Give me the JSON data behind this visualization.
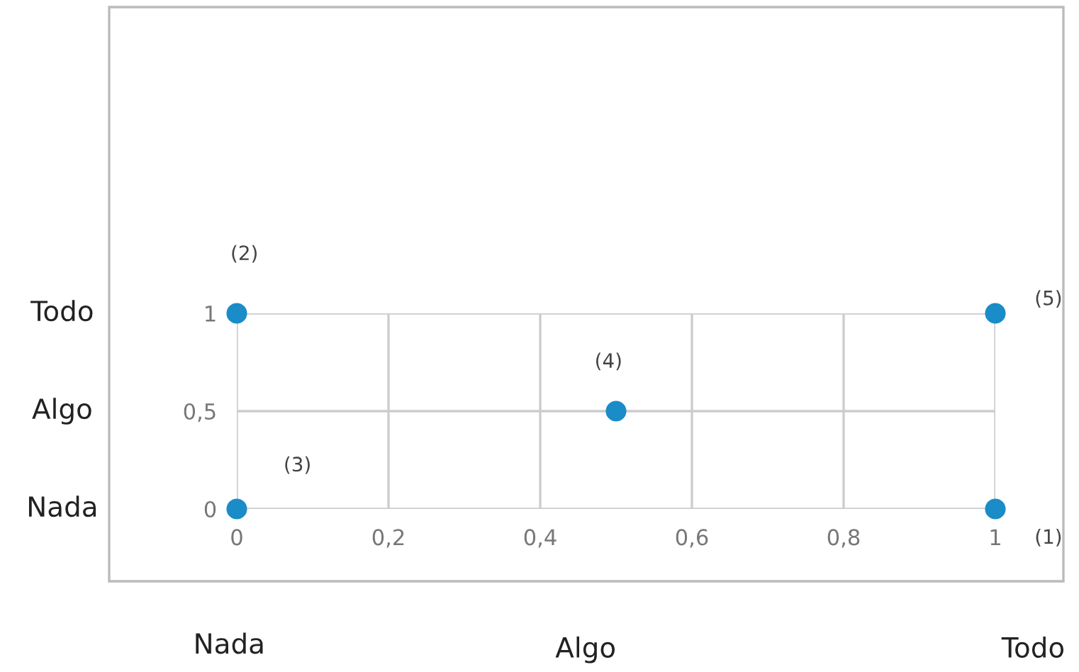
{
  "chart_data": {
    "type": "scatter",
    "x": [
      0,
      0,
      0.5,
      1,
      1
    ],
    "values": [
      0,
      1,
      0.5,
      1,
      0
    ],
    "color": "#1a8cc8",
    "marker": "circle",
    "xlim": [
      0,
      1
    ],
    "ylim": [
      0,
      1
    ],
    "xticks": [
      {
        "value": 0,
        "label": "0"
      },
      {
        "value": 0.2,
        "label": "0,2"
      },
      {
        "value": 0.4,
        "label": "0,4"
      },
      {
        "value": 0.6,
        "label": "0,6"
      },
      {
        "value": 0.8,
        "label": "0,8"
      },
      {
        "value": 1,
        "label": "1"
      }
    ],
    "yticks": [
      {
        "value": 0,
        "label": "0"
      },
      {
        "value": 0.5,
        "label": "0,5"
      },
      {
        "value": 1,
        "label": "1"
      }
    ],
    "grid": true,
    "annotations": [
      "(1)",
      "(2)",
      "(3)",
      "(4)",
      "(5)",
      "Todo",
      "Algo",
      "Nada",
      "Nada",
      "Algo",
      "Todo"
    ]
  }
}
